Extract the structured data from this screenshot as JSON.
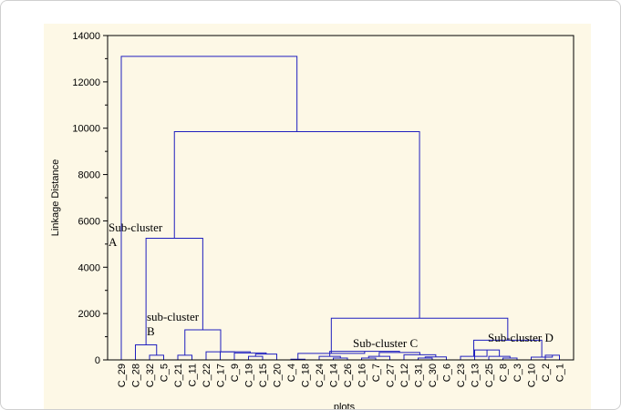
{
  "chart_data": {
    "type": "dendrogram",
    "ylabel": "Linkage Distance",
    "xlabel": "plots",
    "ylim": [
      0,
      14000
    ],
    "yticks": [
      0,
      2000,
      4000,
      6000,
      8000,
      10000,
      12000,
      14000
    ],
    "grid": false,
    "line_color": "#1f1fbf",
    "leaves": [
      "C_29",
      "C_28",
      "C_32",
      "C_5",
      "C_21",
      "C_11",
      "C_22",
      "C_17",
      "C_9",
      "C_19",
      "C_15",
      "C_20",
      "C_4",
      "C_18",
      "C_24",
      "C_14",
      "C_26",
      "C_16",
      "C_7",
      "C_27",
      "C_12",
      "C_31",
      "C_30",
      "C_6",
      "C_23",
      "C_13",
      "C_25",
      "C_8",
      "C_3",
      "C_10",
      "C_2",
      "C_1"
    ],
    "merges": [
      {
        "id": "m1",
        "left": "C_32",
        "right": "C_5",
        "height": 200
      },
      {
        "id": "m2",
        "left": "C_28",
        "right": "m1",
        "height": 650
      },
      {
        "id": "m3",
        "left": "C_21",
        "right": "C_11",
        "height": 200
      },
      {
        "id": "m4",
        "left": "C_19",
        "right": "C_15",
        "height": 150
      },
      {
        "id": "m5",
        "left": "m4",
        "right": "C_20",
        "height": 250
      },
      {
        "id": "m6",
        "left": "C_9",
        "right": "m5",
        "height": 300
      },
      {
        "id": "m7",
        "left": "C_17",
        "right": "m6",
        "height": 350
      },
      {
        "id": "m8",
        "left": "C_22",
        "right": "m7",
        "height": 350
      },
      {
        "id": "m9",
        "left": "m3",
        "right": "m8",
        "height": 1300
      },
      {
        "id": "m10",
        "left": "m2",
        "right": "m9",
        "height": 5250
      },
      {
        "id": "m11",
        "left": "C_4",
        "right": "C_18",
        "height": 30
      },
      {
        "id": "m12",
        "left": "C_14",
        "right": "C_26",
        "height": 80
      },
      {
        "id": "m13",
        "left": "C_24",
        "right": "m12",
        "height": 150
      },
      {
        "id": "m14",
        "left": "C_16",
        "right": "C_7",
        "height": 80
      },
      {
        "id": "m15",
        "left": "m14",
        "right": "C_27",
        "height": 150
      },
      {
        "id": "m16",
        "left": "C_31",
        "right": "C_30",
        "height": 80
      },
      {
        "id": "m17",
        "left": "m16",
        "right": "C_6",
        "height": 130
      },
      {
        "id": "m18",
        "left": "C_12",
        "right": "m17",
        "height": 220
      },
      {
        "id": "m19",
        "left": "m15",
        "right": "m18",
        "height": 320
      },
      {
        "id": "m20",
        "left": "m13",
        "right": "m19",
        "height": 370
      },
      {
        "id": "m21",
        "left": "m11",
        "right": "m20",
        "height": 280
      },
      {
        "id": "m22",
        "left": "C_8",
        "right": "C_3",
        "height": 80
      },
      {
        "id": "m23",
        "left": "C_25",
        "right": "m22",
        "height": 150
      },
      {
        "id": "m24",
        "left": "C_13",
        "right": "m23",
        "height": 430
      },
      {
        "id": "m25",
        "left": "C_23",
        "right": "m24",
        "height": 150
      },
      {
        "id": "m26",
        "left": "C_2",
        "right": "C_1",
        "height": 200
      },
      {
        "id": "m27",
        "left": "C_10",
        "right": "m26",
        "height": 120
      },
      {
        "id": "m28",
        "left": "m25",
        "right": "m27",
        "height": 850
      },
      {
        "id": "m29",
        "left": "m21",
        "right": "m28",
        "height": 1800
      },
      {
        "id": "m30",
        "left": "m10",
        "right": "m29",
        "height": 9850
      },
      {
        "id": "m31",
        "left": "C_29",
        "right": "m30",
        "height": 13100
      }
    ],
    "annotations": [
      {
        "id": "sub-a",
        "lines": [
          "Sub-cluster",
          "A"
        ]
      },
      {
        "id": "sub-b",
        "lines": [
          "sub-cluster",
          "B"
        ]
      },
      {
        "id": "sub-c",
        "lines": [
          "Sub-cluster C"
        ]
      },
      {
        "id": "sub-d",
        "lines": [
          "Sub-cluster D"
        ]
      }
    ]
  }
}
